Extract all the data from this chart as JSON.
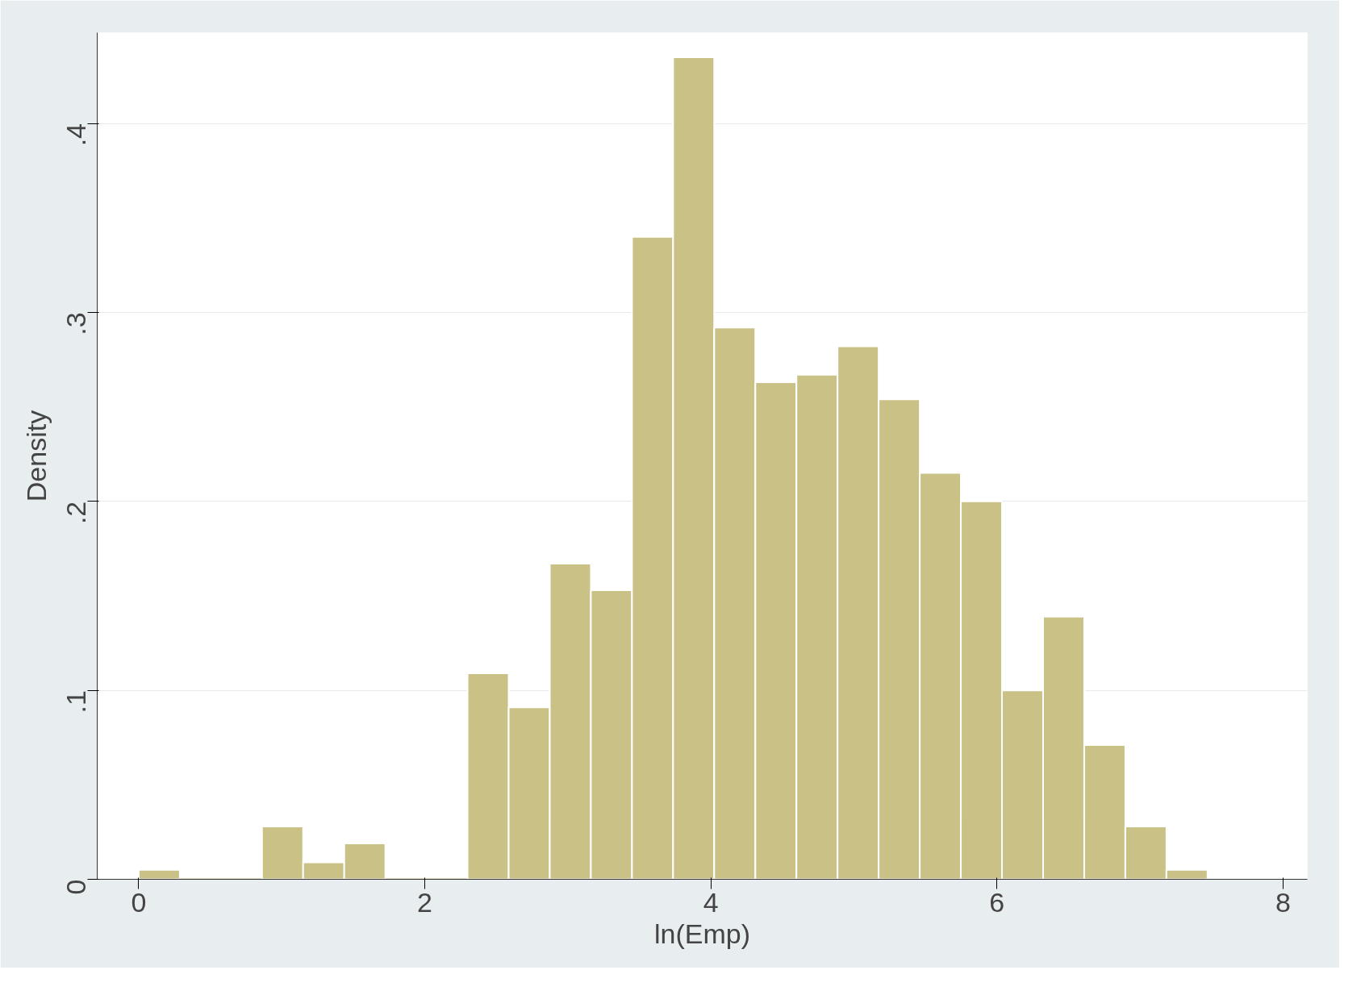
{
  "chart_data": {
    "type": "histogram",
    "xlabel": "ln(Emp)",
    "ylabel": "Density",
    "color": "#c9c186",
    "bins": [
      0,
      0.2874,
      0.5748,
      0.8622,
      1.1496,
      1.437,
      1.7244,
      2.0118,
      2.2992,
      2.5866,
      2.874,
      3.1614,
      3.4488,
      3.7362,
      4.0236,
      4.311,
      4.5984,
      4.8858,
      5.1732,
      5.4606,
      5.748,
      6.0354,
      6.3228,
      6.6102,
      6.8976,
      7.185,
      7.4724
    ],
    "values": [
      0.005,
      0,
      0,
      0.028,
      0.009,
      0.019,
      0,
      0,
      0.109,
      0.091,
      0.167,
      0.153,
      0.34,
      0.435,
      0.292,
      0.263,
      0.267,
      0.282,
      0.254,
      0.215,
      0.2,
      0.1,
      0.139,
      0.071,
      0.028,
      0.005
    ],
    "xlim": [
      -0.29,
      8.17
    ],
    "ylim": [
      0,
      0.448
    ],
    "xticks": [
      0,
      2,
      4,
      6,
      8
    ],
    "yticks": [
      {
        "value": 0,
        "label": "0"
      },
      {
        "value": 0.1,
        "label": ".1"
      },
      {
        "value": 0.2,
        "label": ".2"
      },
      {
        "value": 0.3,
        "label": ".3"
      },
      {
        "value": 0.4,
        "label": ".4"
      }
    ],
    "grid": "y"
  }
}
